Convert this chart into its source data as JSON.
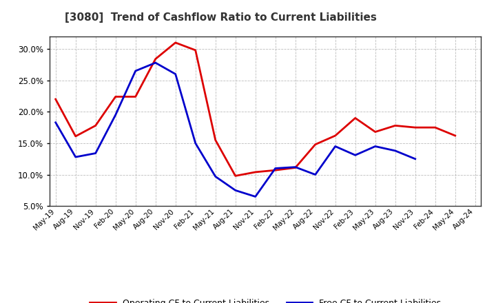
{
  "title": "[3080]  Trend of Cashflow Ratio to Current Liabilities",
  "ylim": [
    0.05,
    0.32
  ],
  "yticks": [
    0.05,
    0.1,
    0.15,
    0.2,
    0.25,
    0.3
  ],
  "background_color": "#ffffff",
  "plot_bg_color": "#ffffff",
  "grid_color": "#aaaaaa",
  "legend": [
    "Operating CF to Current Liabilities",
    "Free CF to Current Liabilities"
  ],
  "line_colors": [
    "#dd0000",
    "#0000cc"
  ],
  "x_labels": [
    "May-19",
    "Aug-19",
    "Nov-19",
    "Feb-20",
    "May-20",
    "Aug-20",
    "Nov-20",
    "Feb-21",
    "May-21",
    "Aug-21",
    "Nov-21",
    "Feb-22",
    "May-22",
    "Aug-22",
    "Nov-22",
    "Feb-23",
    "May-23",
    "Aug-23",
    "Nov-23",
    "Feb-24",
    "May-24",
    "Aug-24"
  ],
  "operating_cf": [
    0.22,
    0.161,
    0.178,
    0.224,
    0.224,
    0.284,
    0.31,
    0.298,
    0.155,
    0.098,
    0.104,
    0.107,
    0.111,
    0.148,
    0.162,
    0.19,
    0.168,
    0.178,
    0.175,
    0.175,
    0.162,
    null
  ],
  "free_cf": [
    0.183,
    0.128,
    0.134,
    0.195,
    0.265,
    0.278,
    0.26,
    0.15,
    0.097,
    0.075,
    0.065,
    0.11,
    0.112,
    0.1,
    0.145,
    0.131,
    0.145,
    0.138,
    0.125,
    null,
    null,
    null
  ]
}
